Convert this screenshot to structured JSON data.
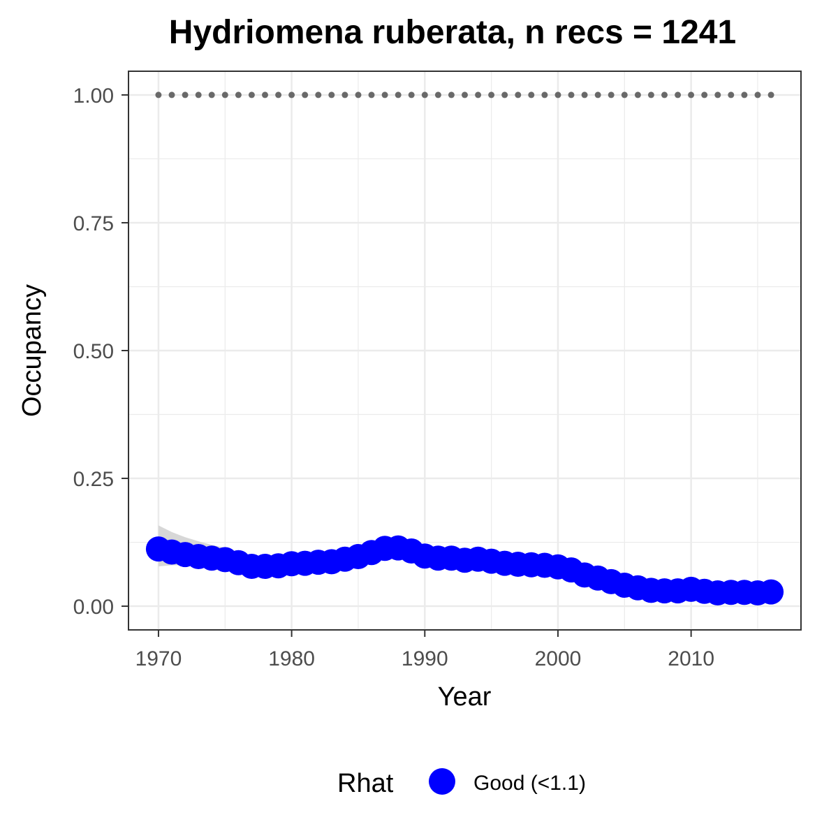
{
  "chart_data": {
    "type": "line",
    "title": "Hydriomena ruberata, n recs = 1241",
    "xlabel": "Year",
    "ylabel": "Occupancy",
    "xlim": [
      1967.8,
      2018.2
    ],
    "ylim": [
      -0.045,
      1.045
    ],
    "x_ticks": [
      1970,
      1980,
      1990,
      2000,
      2010
    ],
    "x_tick_labels": [
      "1970",
      "1980",
      "1990",
      "2000",
      "2010"
    ],
    "y_ticks": [
      0,
      0.25,
      0.5,
      0.75,
      1.0
    ],
    "y_tick_labels": [
      "0.00",
      "0.25",
      "0.50",
      "0.75",
      "1.00"
    ],
    "grid": true,
    "x": [
      1970,
      1971,
      1972,
      1973,
      1974,
      1975,
      1976,
      1977,
      1978,
      1979,
      1980,
      1981,
      1982,
      1983,
      1984,
      1985,
      1986,
      1987,
      1988,
      1989,
      1990,
      1991,
      1992,
      1993,
      1994,
      1995,
      1996,
      1997,
      1998,
      1999,
      2000,
      2001,
      2002,
      2003,
      2004,
      2005,
      2006,
      2007,
      2008,
      2009,
      2010,
      2011,
      2012,
      2013,
      2014,
      2015,
      2016
    ],
    "series": [
      {
        "name": "Good (<1.1)",
        "values": [
          0.112,
          0.106,
          0.101,
          0.097,
          0.094,
          0.091,
          0.085,
          0.078,
          0.078,
          0.079,
          0.083,
          0.084,
          0.086,
          0.087,
          0.092,
          0.097,
          0.105,
          0.113,
          0.114,
          0.108,
          0.098,
          0.094,
          0.094,
          0.09,
          0.092,
          0.088,
          0.084,
          0.082,
          0.081,
          0.08,
          0.077,
          0.071,
          0.061,
          0.055,
          0.048,
          0.041,
          0.036,
          0.031,
          0.03,
          0.03,
          0.033,
          0.029,
          0.026,
          0.027,
          0.027,
          0.026,
          0.028
        ],
        "lower": [
          0.078,
          0.08,
          0.08,
          0.08,
          0.08,
          0.08,
          0.076,
          0.07,
          0.07,
          0.071,
          0.074,
          0.075,
          0.077,
          0.078,
          0.082,
          0.087,
          0.094,
          0.101,
          0.102,
          0.097,
          0.088,
          0.084,
          0.084,
          0.08,
          0.082,
          0.078,
          0.075,
          0.073,
          0.072,
          0.071,
          0.068,
          0.062,
          0.053,
          0.047,
          0.041,
          0.034,
          0.029,
          0.025,
          0.024,
          0.024,
          0.026,
          0.023,
          0.02,
          0.021,
          0.021,
          0.02,
          0.021
        ],
        "upper": [
          0.158,
          0.145,
          0.135,
          0.127,
          0.12,
          0.114,
          0.104,
          0.092,
          0.09,
          0.09,
          0.094,
          0.095,
          0.097,
          0.098,
          0.104,
          0.11,
          0.119,
          0.128,
          0.129,
          0.122,
          0.11,
          0.106,
          0.106,
          0.102,
          0.104,
          0.1,
          0.096,
          0.093,
          0.092,
          0.091,
          0.088,
          0.082,
          0.071,
          0.065,
          0.058,
          0.05,
          0.045,
          0.039,
          0.038,
          0.038,
          0.042,
          0.037,
          0.034,
          0.036,
          0.036,
          0.035,
          0.038
        ]
      },
      {
        "name": "reference",
        "values": [
          1,
          1,
          1,
          1,
          1,
          1,
          1,
          1,
          1,
          1,
          1,
          1,
          1,
          1,
          1,
          1,
          1,
          1,
          1,
          1,
          1,
          1,
          1,
          1,
          1,
          1,
          1,
          1,
          1,
          1,
          1,
          1,
          1,
          1,
          1,
          1,
          1,
          1,
          1,
          1,
          1,
          1,
          1,
          1,
          1,
          1,
          1
        ]
      }
    ],
    "legend": {
      "title": "Rhat",
      "position": "bottom",
      "entries": [
        {
          "label": "Good (<1.1)",
          "color": "#0000ff"
        }
      ]
    },
    "colors": {
      "points": "#0000ff",
      "ribbon": "#d3d3d3",
      "reference": "#696969",
      "grid": "#ebebeb",
      "border": "#333333"
    }
  }
}
